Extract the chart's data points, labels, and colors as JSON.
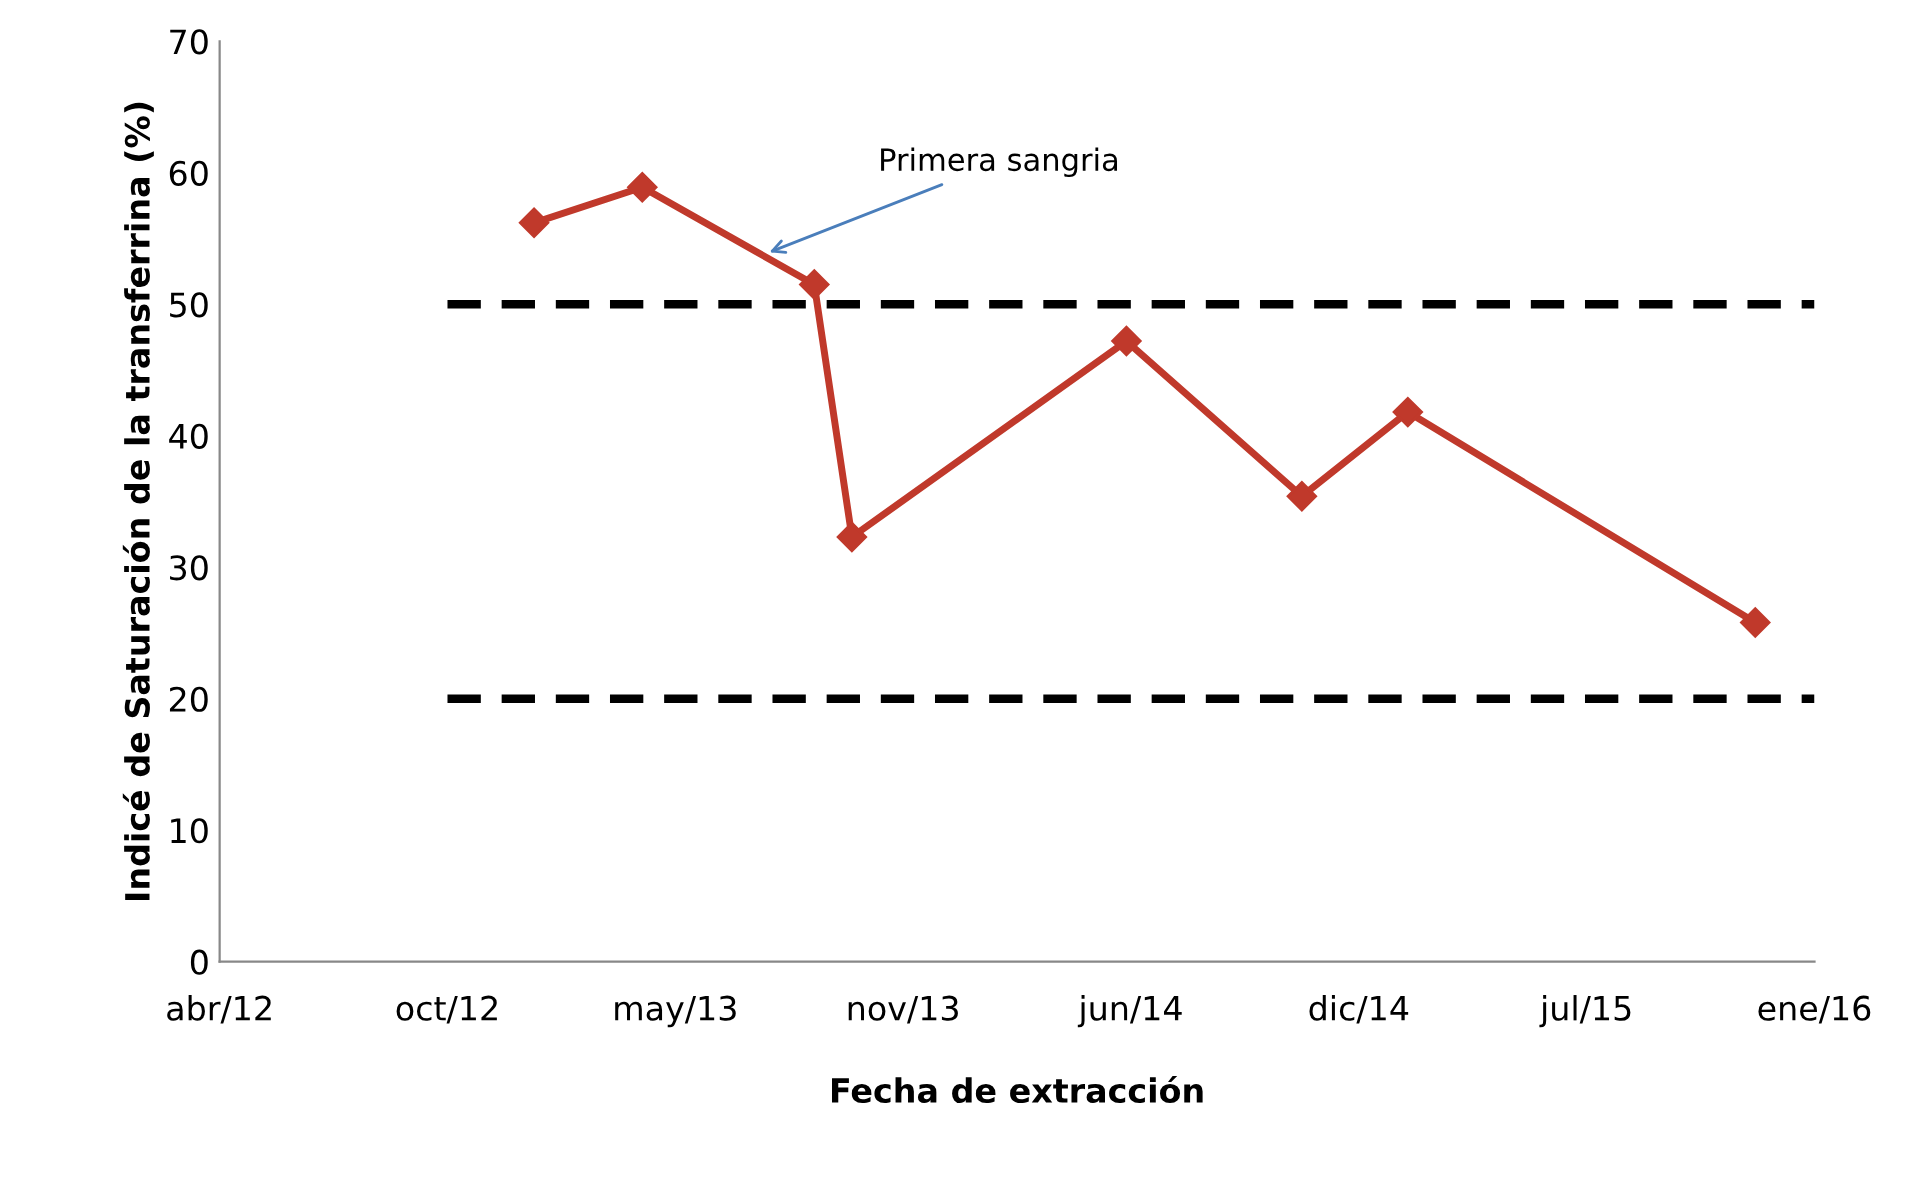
{
  "chart_data": {
    "type": "line",
    "xlabel": "Fecha de extracción",
    "ylabel": "Indicé de Saturación de la transferrina (%)",
    "series": [
      {
        "color": "#c0392b",
        "marker": "diamond",
        "line_style": "solid",
        "x": [
          "2013-01-02",
          "2013-04-07",
          "2013-09-05",
          "2013-10-08",
          "2014-06-06",
          "2014-11-07",
          "2015-02-08",
          "2015-12-10"
        ],
        "values": [
          56.2,
          58.9,
          51.5,
          32.3,
          47.2,
          35.4,
          41.8,
          25.8
        ]
      },
      {
        "color": "#000000",
        "marker": "none",
        "line_style": "dashed",
        "x": [
          "2012-10-18",
          "2016-01-31"
        ],
        "values": [
          50,
          50
        ]
      },
      {
        "color": "#000000",
        "marker": "none",
        "line_style": "dashed",
        "x": [
          "2012-10-18",
          "2016-01-31"
        ],
        "values": [
          20,
          20
        ]
      }
    ],
    "annotations": [
      {
        "text": "Primera sangria",
        "x": "2013-07-23",
        "y": 53.8
      }
    ],
    "xlim": [
      "2012-04-01",
      "2016-01-31"
    ],
    "xticks": [
      {
        "value": "2012-04-01",
        "label": "abr/12"
      },
      {
        "value": "2012-10-18",
        "label": "oct/12"
      },
      {
        "value": "2013-05-06",
        "label": "may/13"
      },
      {
        "value": "2013-11-22",
        "label": "nov/13"
      },
      {
        "value": "2014-06-10",
        "label": "jun/14"
      },
      {
        "value": "2014-12-27",
        "label": "dic/14"
      },
      {
        "value": "2015-07-15",
        "label": "jul/15"
      },
      {
        "value": "2016-01-31",
        "label": "ene/16"
      }
    ],
    "ylim": [
      0,
      70
    ],
    "yticks": [
      0,
      10,
      20,
      30,
      40,
      50,
      60,
      70
    ],
    "grid": false,
    "legend": false
  }
}
